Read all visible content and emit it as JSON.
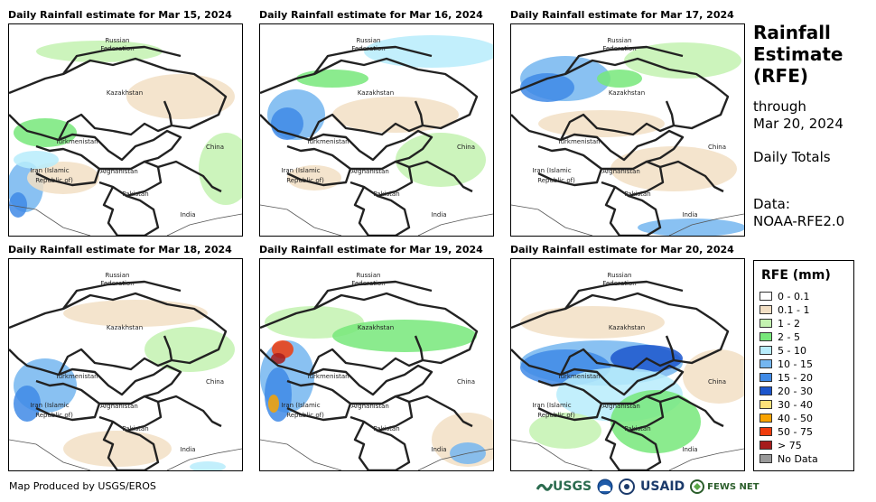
{
  "panels": [
    {
      "title": "Daily Rainfall estimate for Mar 15, 2024"
    },
    {
      "title": "Daily Rainfall estimate for Mar 16, 2024"
    },
    {
      "title": "Daily Rainfall estimate for Mar 17, 2024"
    },
    {
      "title": "Daily Rainfall estimate for Mar 18, 2024"
    },
    {
      "title": "Daily Rainfall estimate for Mar 19, 2024"
    },
    {
      "title": "Daily Rainfall estimate for Mar 20, 2024"
    }
  ],
  "map_labels": {
    "russia_line1": "Russian",
    "russia_line2": "Federation",
    "kazakhstan": "Kazakhstan",
    "turkmenistan": "Turkmenistan",
    "china": "China",
    "iran_line1": "Iran  (Islamic",
    "iran_line2": "Republic of)",
    "afghanistan": "Afghanistan",
    "pakistan": "Pakistan",
    "india": "India"
  },
  "sidebar": {
    "title_line1": "Rainfall",
    "title_line2": "Estimate",
    "title_line3": "(RFE)",
    "through": "through",
    "date": "Mar 20, 2024",
    "totals": "Daily Totals",
    "data_label": "Data:",
    "data_source": "NOAA-RFE2.0"
  },
  "legend": {
    "title": "RFE (mm)",
    "items": [
      {
        "label": "0 - 0.1",
        "color": "#ffffff"
      },
      {
        "label": "0.1 - 1",
        "color": "#f2dfc4"
      },
      {
        "label": "1 - 2",
        "color": "#c3f2b0"
      },
      {
        "label": "2 - 5",
        "color": "#77e77a"
      },
      {
        "label": "5 - 10",
        "color": "#b7ecfb"
      },
      {
        "label": "10 - 15",
        "color": "#74b6f0"
      },
      {
        "label": "15 - 20",
        "color": "#3f8ae6"
      },
      {
        "label": "20 - 30",
        "color": "#1c56cc"
      },
      {
        "label": "30 - 40",
        "color": "#fde27a"
      },
      {
        "label": "40 - 50",
        "color": "#f9a300"
      },
      {
        "label": "50 - 75",
        "color": "#f03b0c"
      },
      {
        "label": "> 75",
        "color": "#a61c1c"
      },
      {
        "label": "No Data",
        "color": "#999999"
      }
    ]
  },
  "footer": {
    "credit": "Map Produced by USGS/EROS",
    "logo_usgs": "USGS",
    "logo_usaid": "USAID",
    "logo_fews": "FEWS NET"
  }
}
